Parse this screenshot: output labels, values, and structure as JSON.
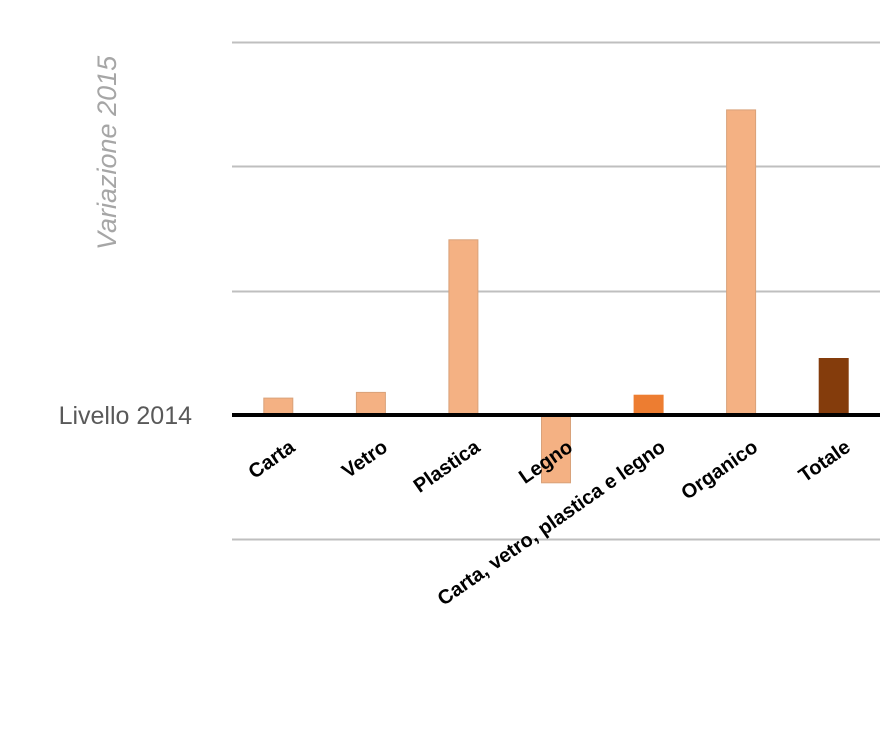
{
  "chart_data": {
    "type": "bar",
    "title": "",
    "ylabel": "Variazione 2015",
    "baseline_label": "Livello 2014",
    "categories": [
      "Carta",
      "Vetro",
      "Plastica",
      "Legno",
      "Carta, vetro, plastica e legno",
      "Organico",
      "Totale"
    ],
    "values": [
      3,
      4,
      31,
      -12,
      3.5,
      54,
      10
    ],
    "ylim": [
      -22,
      65
    ],
    "grid": true,
    "legend": "none",
    "colors": {
      "material": "#f4b183",
      "combined": "#ed7d31",
      "total": "#843c0c",
      "gridline": "#bfbfbf",
      "baseline": "#000000",
      "bar_outline": "#d9a27a"
    }
  }
}
